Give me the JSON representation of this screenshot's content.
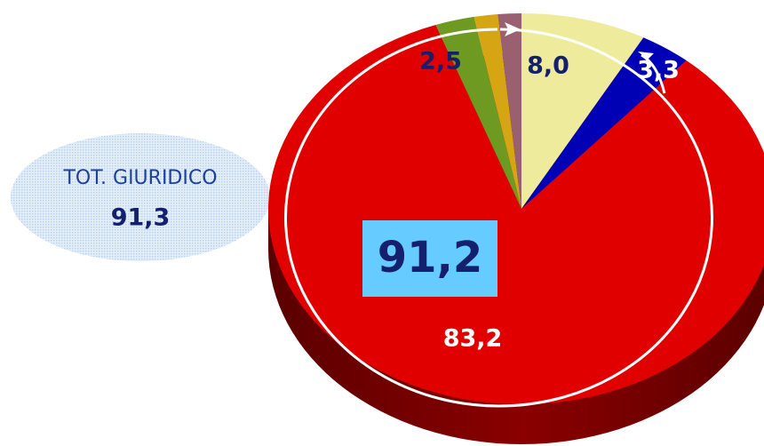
{
  "chart_data": {
    "type": "pie",
    "values": [
      8.0,
      3.3,
      83.2,
      2.5,
      1.5,
      1.5
    ],
    "value_labels": [
      "8,0",
      "3,3",
      "83,2",
      "2,5",
      null,
      null
    ],
    "colors": [
      "#eeec9c",
      "#0000b4",
      "#e00000",
      "#6f9a22",
      "#d6a514",
      "#9a6070"
    ],
    "annotations": {
      "box": "91,2",
      "bubble_title": "TOT. GIURIDICO",
      "bubble_value": "91,3"
    }
  }
}
